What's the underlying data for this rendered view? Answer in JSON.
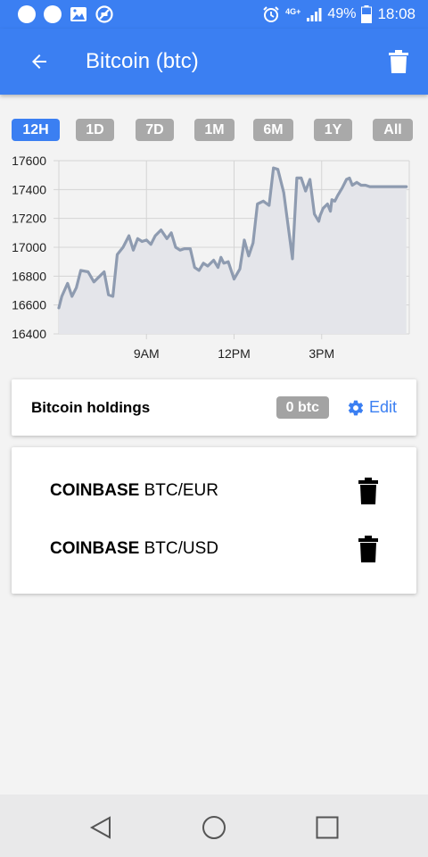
{
  "status_bar": {
    "battery": "49%",
    "time": "18:08",
    "network": "4G+",
    "icons": [
      "notification-dot-icon",
      "notification-dot-icon",
      "image-icon",
      "blocked-icon",
      "alarm-icon",
      "signal-icon",
      "battery-icon"
    ]
  },
  "app_bar": {
    "title": "Bitcoin (btc)",
    "back_icon": "arrow-left-icon",
    "delete_icon": "trash-icon"
  },
  "range_tabs": [
    {
      "label": "12H",
      "active": true
    },
    {
      "label": "1D",
      "active": false
    },
    {
      "label": "7D",
      "active": false
    },
    {
      "label": "1M",
      "active": false
    },
    {
      "label": "6M",
      "active": false
    },
    {
      "label": "1Y",
      "active": false
    },
    {
      "label": "All",
      "active": false
    }
  ],
  "chart_data": {
    "type": "area",
    "x_tick_labels": [
      "9AM",
      "12PM",
      "3PM"
    ],
    "y_tick_labels": [
      "17600",
      "17400",
      "17200",
      "17000",
      "16800",
      "16600",
      "16400"
    ],
    "ylim": [
      16400,
      17600
    ],
    "grid": true,
    "line_color": "#8e9bb0",
    "fill_color": "#e4e5ea",
    "x_hours": [
      6.0,
      6.1,
      6.3,
      6.45,
      6.6,
      6.75,
      7.0,
      7.2,
      7.4,
      7.55,
      7.7,
      7.85,
      8.0,
      8.2,
      8.4,
      8.55,
      8.7,
      8.85,
      9.0,
      9.15,
      9.3,
      9.5,
      9.7,
      9.85,
      10.0,
      10.15,
      10.3,
      10.5,
      10.65,
      10.8,
      10.95,
      11.1,
      11.3,
      11.45,
      11.55,
      11.65,
      11.8,
      12.0,
      12.2,
      12.35,
      12.5,
      12.65,
      12.8,
      13.0,
      13.2,
      13.35,
      13.5,
      13.7,
      13.85,
      14.0,
      14.15,
      14.3,
      14.45,
      14.6,
      14.75,
      14.9,
      14.95,
      15.05,
      15.2,
      15.3,
      15.35,
      15.45,
      15.55,
      15.7,
      15.85,
      15.95,
      16.05,
      16.2,
      16.35,
      16.5,
      16.65,
      16.8,
      16.95,
      17.1,
      17.25,
      17.4,
      17.55,
      17.7,
      17.9
    ],
    "values": [
      16580,
      16660,
      16750,
      16660,
      16720,
      16840,
      16830,
      16760,
      16800,
      16830,
      16670,
      16660,
      16950,
      17000,
      17080,
      16980,
      17060,
      17040,
      17050,
      17020,
      17080,
      17120,
      17060,
      17100,
      17000,
      16980,
      16990,
      16990,
      16860,
      16840,
      16890,
      16870,
      16910,
      16860,
      16930,
      16890,
      16900,
      16780,
      16850,
      17050,
      16940,
      17030,
      17300,
      17320,
      17290,
      17550,
      17540,
      17380,
      17150,
      16920,
      17480,
      17480,
      17390,
      17470,
      17230,
      17180,
      17220,
      17270,
      17300,
      17250,
      17330,
      17320,
      17360,
      17410,
      17470,
      17480,
      17430,
      17450,
      17430,
      17430,
      17420,
      17420,
      17420,
      17420,
      17420,
      17420,
      17420,
      17420,
      17420
    ]
  },
  "holdings": {
    "label": "Bitcoin holdings",
    "amount": "0 btc",
    "edit_label": "Edit",
    "edit_icon": "gear-icon"
  },
  "markets": [
    {
      "exchange": "COINBASE",
      "pair": "BTC/EUR",
      "delete_icon": "trash-icon"
    },
    {
      "exchange": "COINBASE",
      "pair": "BTC/USD",
      "delete_icon": "trash-icon"
    }
  ],
  "nav_bar": {
    "icons": [
      "back-triangle-icon",
      "home-circle-icon",
      "recents-square-icon"
    ]
  },
  "colors": {
    "primary": "#3b7ff2",
    "tab_inactive": "#a9a9a9",
    "badge": "#a3a3a3",
    "background": "#f3f3f3"
  }
}
